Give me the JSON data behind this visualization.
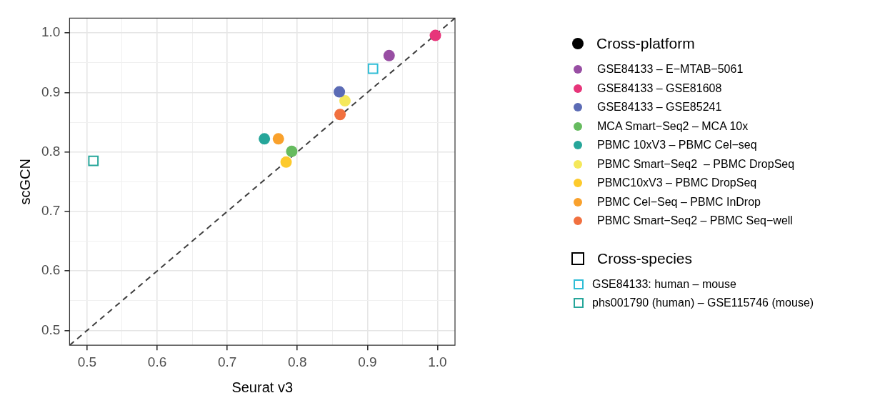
{
  "chart_data": {
    "type": "scatter",
    "xlabel": "Seurat v3",
    "ylabel": "scGCN",
    "xlim": [
      0.475,
      1.025
    ],
    "ylim": [
      0.475,
      1.025
    ],
    "xticks": [
      0.5,
      {
        "value": 0.55,
        "label": null
      },
      0.6,
      {
        "value": 0.65,
        "label": null
      },
      0.7,
      {
        "value": 0.75,
        "label": null
      },
      0.8,
      {
        "value": 0.85,
        "label": null
      },
      0.9,
      {
        "value": 0.95,
        "label": null
      },
      {
        "value": 1,
        "label": "1.0"
      }
    ],
    "yticks": [
      0.5,
      {
        "value": 0.55,
        "label": null
      },
      0.6,
      {
        "value": 0.65,
        "label": null
      },
      0.7,
      {
        "value": 0.75,
        "label": null
      },
      0.8,
      {
        "value": 0.85,
        "label": null
      },
      0.9,
      {
        "value": 0.95,
        "label": null
      },
      {
        "value": 1,
        "label": "1.0"
      }
    ],
    "grid": true,
    "legend": "right",
    "annotations": [
      "Cross-platform",
      "Cross-species"
    ],
    "series": [
      {
        "type": "line",
        "line_style": "dashed",
        "marker": "none",
        "color": "#404040",
        "x": [
          0.475,
          1.025
        ],
        "values": [
          0.475,
          1.025
        ]
      },
      {
        "name": "GSE84133 – E−MTAB−5061",
        "marker": "circle",
        "color": "#984ea3",
        "x": [
          0.931
        ],
        "values": [
          0.962
        ]
      },
      {
        "name": "GSE84133 – GSE81608",
        "marker": "circle",
        "color": "#e7357a",
        "x": [
          0.997
        ],
        "values": [
          0.996
        ]
      },
      {
        "name": "GSE84133 – GSE85241",
        "marker": "circle",
        "color": "#5b6bb5",
        "x": [
          0.86
        ],
        "values": [
          0.901
        ]
      },
      {
        "name": "MCA Smart−Seq2 – MCA 10x",
        "marker": "circle",
        "color": "#66bb5f",
        "x": [
          0.792
        ],
        "values": [
          0.801
        ]
      },
      {
        "name": "PBMC 10xV3 – PBMC Cel−seq",
        "marker": "circle",
        "color": "#26a69a",
        "x": [
          0.753
        ],
        "values": [
          0.822
        ]
      },
      {
        "name": "PBMC Smart−Seq2  – PBMC DropSeq",
        "marker": "circle",
        "color": "#f5e85a",
        "x": [
          0.868
        ],
        "values": [
          0.886
        ]
      },
      {
        "name": "PBMC10xV3 – PBMC DropSeq",
        "marker": "circle",
        "color": "#fdca2c",
        "x": [
          0.784
        ],
        "values": [
          0.783
        ]
      },
      {
        "name": "PBMC Cel−Seq – PBMC InDrop",
        "marker": "circle",
        "color": "#f9a12c",
        "x": [
          0.773
        ],
        "values": [
          0.822
        ]
      },
      {
        "name": "PBMC Smart−Seq2 – PBMC Seq−well",
        "marker": "circle",
        "color": "#f1703f",
        "x": [
          0.861
        ],
        "values": [
          0.863
        ]
      },
      {
        "name": "GSE84133: human – mouse",
        "marker": "square",
        "color": "#2fbdd6",
        "x": [
          0.908
        ],
        "values": [
          0.94
        ]
      },
      {
        "name": "phs001790 (human) – GSE115746 (mouse)",
        "marker": "square",
        "color": "#26a69a",
        "x": [
          0.509
        ],
        "values": [
          0.785
        ]
      }
    ]
  }
}
